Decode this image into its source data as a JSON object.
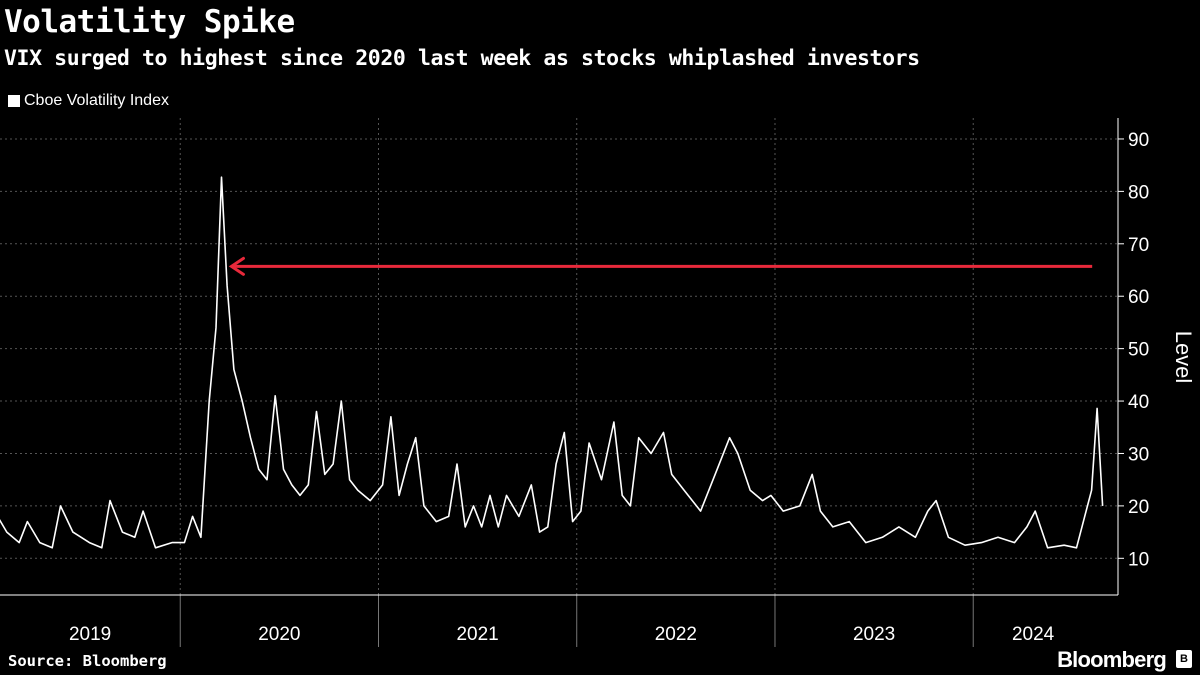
{
  "title": "Volatility Spike",
  "subtitle": "VIX surged to highest since 2020 last week as stocks whiplashed investors",
  "legend": {
    "label": "Cboe Volatility Index"
  },
  "source": "Source: Bloomberg",
  "brand": "Bloomberg",
  "colors": {
    "background": "#000000",
    "line": "#ffffff",
    "arrow": "#e8293b",
    "grid": "#555555"
  },
  "chart_data": {
    "type": "line",
    "title": "Volatility Spike",
    "subtitle": "VIX surged to highest since 2020 last week as stocks whiplashed investors",
    "ylabel": "Level",
    "xlabel": "",
    "ylim": [
      3,
      94
    ],
    "yticks": [
      10,
      20,
      30,
      40,
      50,
      60,
      70,
      80,
      90
    ],
    "y_axis_side": "right",
    "grid": true,
    "legend_position": "top-left",
    "x_labels": [
      "2019",
      "2020",
      "2021",
      "2022",
      "2023",
      "2024"
    ],
    "x_range": [
      "2019-01",
      "2024-08"
    ],
    "series": [
      {
        "name": "Cboe Volatility Index",
        "points": [
          [
            "2019-01",
            24
          ],
          [
            "2019-01",
            19
          ],
          [
            "2019-02",
            15
          ],
          [
            "2019-03",
            13
          ],
          [
            "2019-03",
            17
          ],
          [
            "2019-04",
            13
          ],
          [
            "2019-05",
            12
          ],
          [
            "2019-05",
            20
          ],
          [
            "2019-06",
            15
          ],
          [
            "2019-07",
            13
          ],
          [
            "2019-08",
            12
          ],
          [
            "2019-08",
            21
          ],
          [
            "2019-09",
            15
          ],
          [
            "2019-10",
            14
          ],
          [
            "2019-10",
            19
          ],
          [
            "2019-11",
            12
          ],
          [
            "2019-12",
            13
          ],
          [
            "2020-01",
            13
          ],
          [
            "2020-01",
            18
          ],
          [
            "2020-02",
            14
          ],
          [
            "2020-02",
            40
          ],
          [
            "2020-03",
            54
          ],
          [
            "2020-03",
            82.7
          ],
          [
            "2020-03",
            62
          ],
          [
            "2020-04",
            46
          ],
          [
            "2020-04",
            40
          ],
          [
            "2020-05",
            33
          ],
          [
            "2020-05",
            27
          ],
          [
            "2020-06",
            25
          ],
          [
            "2020-06",
            41
          ],
          [
            "2020-07",
            27
          ],
          [
            "2020-07",
            24
          ],
          [
            "2020-08",
            22
          ],
          [
            "2020-08",
            24
          ],
          [
            "2020-09",
            38
          ],
          [
            "2020-09",
            26
          ],
          [
            "2020-10",
            28
          ],
          [
            "2020-10",
            40
          ],
          [
            "2020-11",
            25
          ],
          [
            "2020-11",
            23
          ],
          [
            "2020-12",
            21
          ],
          [
            "2021-01",
            24
          ],
          [
            "2021-01",
            37
          ],
          [
            "2021-02",
            22
          ],
          [
            "2021-02",
            28
          ],
          [
            "2021-03",
            33
          ],
          [
            "2021-03",
            20
          ],
          [
            "2021-04",
            17
          ],
          [
            "2021-05",
            18
          ],
          [
            "2021-05",
            28
          ],
          [
            "2021-06",
            16
          ],
          [
            "2021-06",
            20
          ],
          [
            "2021-07",
            16
          ],
          [
            "2021-07",
            22
          ],
          [
            "2021-08",
            16
          ],
          [
            "2021-08",
            22
          ],
          [
            "2021-09",
            18
          ],
          [
            "2021-10",
            24
          ],
          [
            "2021-10",
            15
          ],
          [
            "2021-11",
            16
          ],
          [
            "2021-11",
            28
          ],
          [
            "2021-12",
            34
          ],
          [
            "2021-12",
            17
          ],
          [
            "2022-01",
            19
          ],
          [
            "2022-01",
            32
          ],
          [
            "2022-02",
            25
          ],
          [
            "2022-03",
            36
          ],
          [
            "2022-03",
            22
          ],
          [
            "2022-04",
            20
          ],
          [
            "2022-04",
            33
          ],
          [
            "2022-05",
            30
          ],
          [
            "2022-06",
            34
          ],
          [
            "2022-06",
            26
          ],
          [
            "2022-07",
            23
          ],
          [
            "2022-08",
            19
          ],
          [
            "2022-09",
            27
          ],
          [
            "2022-10",
            33
          ],
          [
            "2022-10",
            30
          ],
          [
            "2022-11",
            23
          ],
          [
            "2022-12",
            21
          ],
          [
            "2022-12",
            22
          ],
          [
            "2023-01",
            19
          ],
          [
            "2023-02",
            20
          ],
          [
            "2023-03",
            26
          ],
          [
            "2023-03",
            19
          ],
          [
            "2023-04",
            16
          ],
          [
            "2023-05",
            17
          ],
          [
            "2023-06",
            13
          ],
          [
            "2023-07",
            14
          ],
          [
            "2023-08",
            16
          ],
          [
            "2023-09",
            14
          ],
          [
            "2023-10",
            19
          ],
          [
            "2023-10",
            21
          ],
          [
            "2023-11",
            14
          ],
          [
            "2023-12",
            12.5
          ],
          [
            "2024-01",
            13
          ],
          [
            "2024-02",
            14
          ],
          [
            "2024-03",
            13
          ],
          [
            "2024-04",
            16
          ],
          [
            "2024-04",
            19
          ],
          [
            "2024-05",
            12
          ],
          [
            "2024-06",
            12.5
          ],
          [
            "2024-07",
            12
          ],
          [
            "2024-07",
            18
          ],
          [
            "2024-08",
            23
          ],
          [
            "2024-08",
            38.6
          ],
          [
            "2024-08",
            20
          ]
        ]
      }
    ],
    "annotations": [
      {
        "type": "arrow",
        "from_date": "2024-08",
        "to_date": "2020-04",
        "y": 65.7
      }
    ]
  }
}
